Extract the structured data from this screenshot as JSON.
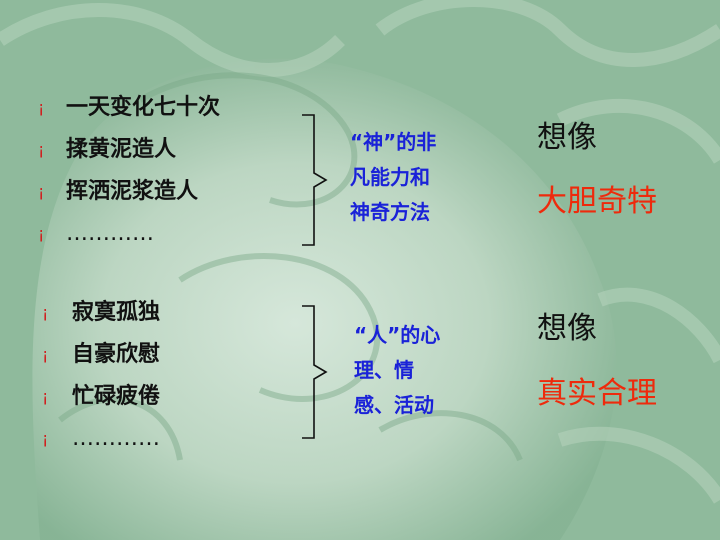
{
  "bullet_glyph": "¡",
  "group1": {
    "items": [
      "一天变化七十次",
      "揉黄泥造人",
      "挥洒泥浆造人",
      "…………"
    ],
    "note_lines": [
      "“神”的非",
      "凡能力和",
      "神奇方法"
    ],
    "word_black": "想像",
    "word_red": "大胆奇特"
  },
  "group2": {
    "items": [
      "寂寞孤独",
      "自豪欣慰",
      "忙碌疲倦",
      "…………"
    ],
    "note_lines": [
      "“人”的心",
      "理、情",
      "感、活动"
    ],
    "word_black": "想像",
    "word_red": "真实合理"
  },
  "colors": {
    "background": "#9cc0a6",
    "bullet": "#d02020",
    "note_blue": "#1a22d8",
    "accent_red": "#ee2a0c"
  }
}
